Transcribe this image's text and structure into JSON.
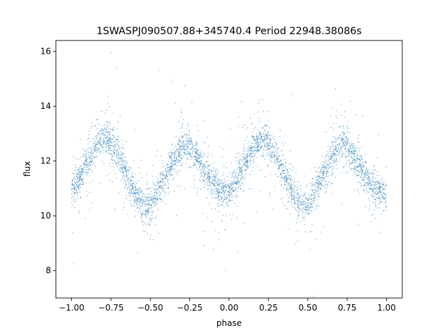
{
  "chart_data": {
    "type": "scatter",
    "title": "1SWASPJ090507.88+345740.4 Period 22948.38086s",
    "xlabel": "phase",
    "ylabel": "flux",
    "xlim": [
      -1.1,
      1.1
    ],
    "ylim": [
      7.0,
      16.4
    ],
    "xticks": [
      -1.0,
      -0.75,
      -0.5,
      -0.25,
      0.0,
      0.25,
      0.5,
      0.75,
      1.0
    ],
    "xtick_labels": [
      "−1.00",
      "−0.75",
      "−0.50",
      "−0.25",
      "0.00",
      "0.25",
      "0.50",
      "0.75",
      "1.00"
    ],
    "yticks": [
      8,
      10,
      12,
      14,
      16
    ],
    "ytick_labels": [
      "8",
      "10",
      "12",
      "14",
      "16"
    ],
    "grid": false,
    "marker_color": "#1f77b4",
    "series": [
      {
        "x": [
          -1.0,
          -0.95,
          -0.9,
          -0.85,
          -0.8,
          -0.77,
          -0.75,
          -0.7,
          -0.65,
          -0.6,
          -0.55,
          -0.52,
          -0.5,
          -0.45,
          -0.4,
          -0.35,
          -0.3,
          -0.27,
          -0.25,
          -0.2,
          -0.15,
          -0.1,
          -0.05,
          -0.02,
          0.0,
          0.05,
          0.1,
          0.15,
          0.2,
          0.23,
          0.25,
          0.3,
          0.35,
          0.4,
          0.45,
          0.48,
          0.5,
          0.55,
          0.6,
          0.65,
          0.7,
          0.73,
          0.75,
          0.8,
          0.85,
          0.9,
          0.95,
          1.0
        ],
        "y": [
          10.9,
          11.4,
          12.0,
          12.5,
          12.8,
          12.85,
          12.7,
          12.2,
          11.5,
          10.9,
          10.4,
          10.25,
          10.3,
          10.9,
          11.5,
          12.1,
          12.5,
          12.6,
          12.5,
          12.1,
          11.6,
          11.2,
          10.9,
          10.8,
          10.85,
          11.3,
          11.9,
          12.4,
          12.75,
          12.8,
          12.7,
          12.2,
          11.5,
          10.9,
          10.4,
          10.25,
          10.3,
          10.9,
          11.5,
          12.1,
          12.5,
          12.6,
          12.5,
          12.1,
          11.6,
          11.2,
          10.9,
          10.8
        ]
      }
    ]
  }
}
